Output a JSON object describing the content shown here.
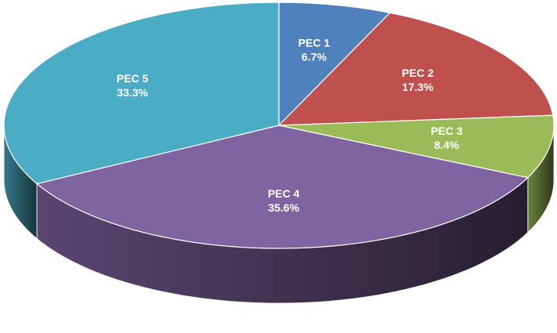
{
  "chart_data": {
    "type": "pie3d",
    "categories": [
      "PEC 1",
      "PEC 2",
      "PEC 3",
      "PEC 4",
      "PEC 5"
    ],
    "values": [
      6.7,
      17.3,
      8.4,
      35.6,
      33.3
    ],
    "value_labels": [
      "6.7%",
      "17.3%",
      "8.4%",
      "35.6%",
      "33.3%"
    ],
    "colors": [
      "#4f81bd",
      "#c0504d",
      "#9bbb59",
      "#8064a2",
      "#4bacc6"
    ]
  }
}
